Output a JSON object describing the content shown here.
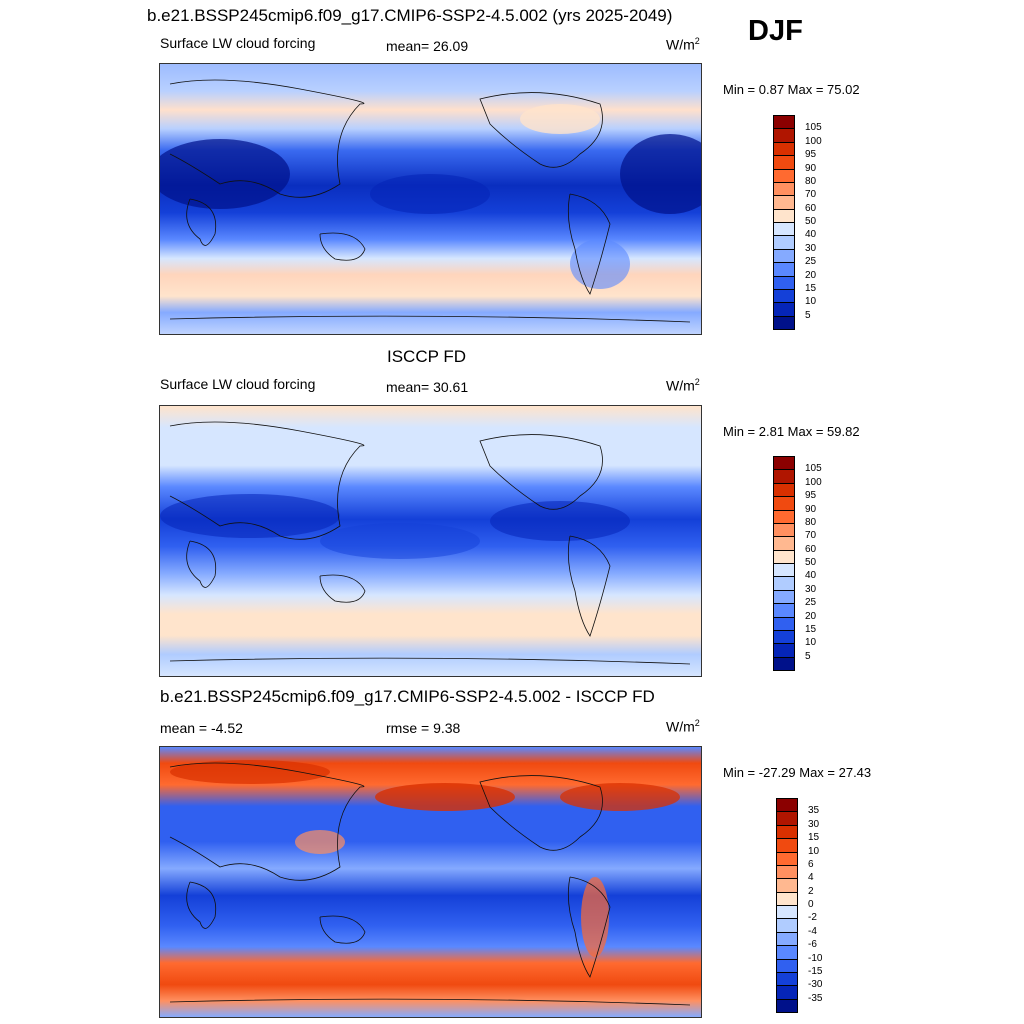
{
  "header": {
    "title": "b.e21.BSSP245cmip6.f09_g17.CMIP6-SSP2-4.5.002 (yrs 2025-2049)",
    "season": "DJF"
  },
  "panels": [
    {
      "id": "model",
      "variable": "Surface LW cloud forcing",
      "stat_label": "mean=",
      "stat_value": "26.09",
      "units": "W/m",
      "units_sup": "2",
      "minmax": "Min =   0.87 Max =  75.02",
      "colorbar": {
        "labels": [
          "105",
          "100",
          "95",
          "90",
          "80",
          "70",
          "60",
          "50",
          "40",
          "30",
          "25",
          "20",
          "15",
          "10",
          "5"
        ],
        "colors": [
          "#8b0000",
          "#b01500",
          "#d93000",
          "#f04a10",
          "#ff6a30",
          "#ff9060",
          "#ffb890",
          "#ffe4cc",
          "#d6e6ff",
          "#b0ccff",
          "#85aaff",
          "#5a88ff",
          "#3060f0",
          "#1440d8",
          "#0525b8",
          "#00118a"
        ]
      }
    },
    {
      "id": "obs",
      "title": "ISCCP FD",
      "variable": "Surface LW cloud forcing",
      "stat_label": "mean=",
      "stat_value": "30.61",
      "units": "W/m",
      "units_sup": "2",
      "minmax": "Min =   2.81 Max =  59.82",
      "colorbar": {
        "labels": [
          "105",
          "100",
          "95",
          "90",
          "80",
          "70",
          "60",
          "50",
          "40",
          "30",
          "25",
          "20",
          "15",
          "10",
          "5"
        ],
        "colors": [
          "#8b0000",
          "#b01500",
          "#d93000",
          "#f04a10",
          "#ff6a30",
          "#ff9060",
          "#ffb890",
          "#ffe4cc",
          "#d6e6ff",
          "#b0ccff",
          "#85aaff",
          "#5a88ff",
          "#3060f0",
          "#1440d8",
          "#0525b8",
          "#00118a"
        ]
      }
    },
    {
      "id": "diff",
      "title": "b.e21.BSSP245cmip6.f09_g17.CMIP6-SSP2-4.5.002 - ISCCP FD",
      "mean_label": "mean =",
      "mean_value": "-4.52",
      "rmse_label": "rmse =",
      "rmse_value": "9.38",
      "units": "W/m",
      "units_sup": "2",
      "minmax": "Min = -27.29 Max =  27.43",
      "colorbar": {
        "labels": [
          "35",
          "30",
          "15",
          "10",
          "6",
          "4",
          "2",
          "0",
          "-2",
          "-4",
          "-6",
          "-10",
          "-15",
          "-30",
          "-35"
        ],
        "colors": [
          "#8b0000",
          "#b01500",
          "#d93000",
          "#f04a10",
          "#ff6a30",
          "#ff9060",
          "#ffb890",
          "#ffe4cc",
          "#d6e6ff",
          "#b0ccff",
          "#85aaff",
          "#5a88ff",
          "#3060f0",
          "#1440d8",
          "#0525b8",
          "#00118a"
        ]
      }
    }
  ]
}
